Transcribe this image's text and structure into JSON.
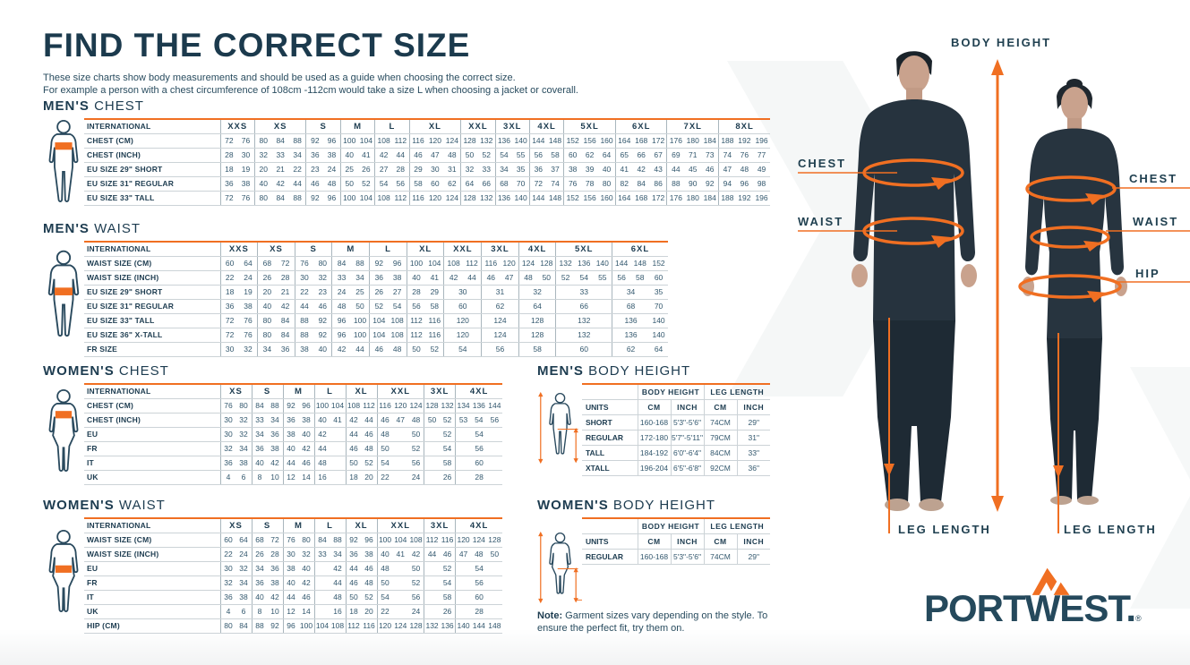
{
  "header": {
    "title": "FIND THE CORRECT SIZE",
    "subtitle1": "These size charts show body measurements and should be used as a guide when choosing the correct size.",
    "subtitle2": "For example a person with a chest circumference of 108cm -112cm would take a size L when choosing a jacket or coverall."
  },
  "colors": {
    "navy": "#1d3c50",
    "orange": "#f06f22"
  },
  "size_tables": {
    "mens_chest": {
      "title_bold": "MEN'S",
      "title_rest": "CHEST",
      "corner_label": "INTERNATIONAL",
      "groups": [
        {
          "label": "XXS",
          "span": 2
        },
        {
          "label": "XS",
          "span": 3
        },
        {
          "label": "S",
          "span": 2
        },
        {
          "label": "M",
          "span": 2
        },
        {
          "label": "L",
          "span": 2
        },
        {
          "label": "XL",
          "span": 3
        },
        {
          "label": "XXL",
          "span": 2
        },
        {
          "label": "3XL",
          "span": 2
        },
        {
          "label": "4XL",
          "span": 2
        },
        {
          "label": "5XL",
          "span": 3
        },
        {
          "label": "6XL",
          "span": 3
        },
        {
          "label": "7XL",
          "span": 3
        },
        {
          "label": "8XL",
          "span": 3
        }
      ],
      "rows": [
        {
          "label": "CHEST (CM)",
          "cells": [
            72,
            76,
            80,
            84,
            88,
            92,
            96,
            100,
            104,
            108,
            112,
            116,
            120,
            124,
            128,
            132,
            136,
            140,
            144,
            148,
            152,
            156,
            160,
            164,
            168,
            172,
            176,
            180,
            184,
            188,
            192,
            196
          ]
        },
        {
          "label": "CHEST (INCH)",
          "cells": [
            28,
            30,
            32,
            33,
            34,
            36,
            38,
            40,
            41,
            42,
            44,
            46,
            47,
            48,
            50,
            52,
            54,
            55,
            56,
            58,
            60,
            62,
            64,
            65,
            66,
            67,
            69,
            71,
            73,
            74,
            76,
            77
          ]
        },
        {
          "label": "EU SIZE 29\" SHORT",
          "cells": [
            18,
            19,
            20,
            21,
            22,
            23,
            24,
            25,
            26,
            27,
            28,
            29,
            30,
            31,
            32,
            33,
            34,
            35,
            36,
            37,
            38,
            39,
            40,
            41,
            42,
            43,
            44,
            45,
            46,
            47,
            48,
            49
          ]
        },
        {
          "label": "EU SIZE 31\" REGULAR",
          "cells": [
            36,
            38,
            40,
            42,
            44,
            46,
            48,
            50,
            52,
            54,
            56,
            58,
            60,
            62,
            64,
            66,
            68,
            70,
            72,
            74,
            76,
            78,
            80,
            82,
            84,
            86,
            88,
            90,
            92,
            94,
            96,
            98
          ]
        },
        {
          "label": "EU SIZE 33\" TALL",
          "cells": [
            72,
            76,
            80,
            84,
            88,
            92,
            96,
            100,
            104,
            108,
            112,
            116,
            120,
            124,
            128,
            132,
            136,
            140,
            144,
            148,
            152,
            156,
            160,
            164,
            168,
            172,
            176,
            180,
            184,
            188,
            192,
            196
          ]
        }
      ]
    },
    "mens_waist": {
      "title_bold": "MEN'S",
      "title_rest": "WAIST",
      "corner_label": "INTERNATIONAL",
      "groups": [
        {
          "label": "XXS",
          "span": 2
        },
        {
          "label": "XS",
          "span": 2
        },
        {
          "label": "S",
          "span": 2
        },
        {
          "label": "M",
          "span": 2
        },
        {
          "label": "L",
          "span": 2
        },
        {
          "label": "XL",
          "span": 2
        },
        {
          "label": "XXL",
          "span": 2
        },
        {
          "label": "3XL",
          "span": 2
        },
        {
          "label": "4XL",
          "span": 2
        },
        {
          "label": "5XL",
          "span": 3
        },
        {
          "label": "6XL",
          "span": 3
        }
      ],
      "rows": [
        {
          "label": "WAIST SIZE (CM)",
          "cells": [
            60,
            64,
            68,
            72,
            76,
            80,
            84,
            88,
            92,
            96,
            100,
            104,
            108,
            112,
            116,
            120,
            124,
            128,
            132,
            136,
            140,
            144,
            148,
            152
          ]
        },
        {
          "label": "WAIST SIZE (INCH)",
          "cells": [
            22,
            24,
            26,
            28,
            30,
            32,
            33,
            34,
            36,
            38,
            40,
            41,
            42,
            44,
            46,
            47,
            48,
            50,
            52,
            54,
            55,
            56,
            58,
            60
          ]
        },
        {
          "label": "EU SIZE 29\" SHORT",
          "cells": [
            18,
            19,
            20,
            21,
            22,
            23,
            24,
            25,
            26,
            27,
            28,
            29,
            {
              "v": 30,
              "s": 2
            },
            {
              "v": 31,
              "s": 2
            },
            {
              "v": 32,
              "s": 2
            },
            {
              "v": 33,
              "s": 3
            },
            {
              "v": 34,
              "s": 2
            },
            35
          ]
        },
        {
          "label": "EU SIZE 31\" REGULAR",
          "cells": [
            36,
            38,
            40,
            42,
            44,
            46,
            48,
            50,
            52,
            54,
            56,
            58,
            {
              "v": 60,
              "s": 2
            },
            {
              "v": 62,
              "s": 2
            },
            {
              "v": 64,
              "s": 2
            },
            {
              "v": 66,
              "s": 3
            },
            {
              "v": 68,
              "s": 2
            },
            70
          ]
        },
        {
          "label": "EU SIZE 33\" TALL",
          "cells": [
            72,
            76,
            80,
            84,
            88,
            92,
            96,
            100,
            104,
            108,
            112,
            116,
            {
              "v": 120,
              "s": 2
            },
            {
              "v": 124,
              "s": 2
            },
            {
              "v": 128,
              "s": 2
            },
            {
              "v": 132,
              "s": 3
            },
            {
              "v": 136,
              "s": 2
            },
            140
          ]
        },
        {
          "label": "EU SIZE 36\" X-TALL",
          "cells": [
            72,
            76,
            80,
            84,
            88,
            92,
            96,
            100,
            104,
            108,
            112,
            116,
            {
              "v": 120,
              "s": 2
            },
            {
              "v": 124,
              "s": 2
            },
            {
              "v": 128,
              "s": 2
            },
            {
              "v": 132,
              "s": 3
            },
            {
              "v": 136,
              "s": 2
            },
            140
          ]
        },
        {
          "label": "FR SIZE",
          "cells": [
            30,
            32,
            34,
            36,
            38,
            40,
            42,
            44,
            46,
            48,
            50,
            52,
            {
              "v": 54,
              "s": 2
            },
            {
              "v": 56,
              "s": 2
            },
            {
              "v": 58,
              "s": 2
            },
            {
              "v": 60,
              "s": 3
            },
            {
              "v": 62,
              "s": 2
            },
            64
          ]
        }
      ]
    },
    "womens_chest": {
      "title_bold": "WOMEN'S",
      "title_rest": "CHEST",
      "corner_label": "INTERNATIONAL",
      "groups": [
        {
          "label": "XS",
          "span": 2
        },
        {
          "label": "S",
          "span": 2
        },
        {
          "label": "M",
          "span": 2
        },
        {
          "label": "L",
          "span": 2
        },
        {
          "label": "XL",
          "span": 2
        },
        {
          "label": "XXL",
          "span": 3
        },
        {
          "label": "3XL",
          "span": 2
        },
        {
          "label": "4XL",
          "span": 3
        }
      ],
      "rows": [
        {
          "label": "CHEST (CM)",
          "cells": [
            76,
            80,
            84,
            88,
            92,
            96,
            100,
            104,
            108,
            112,
            116,
            120,
            124,
            128,
            132,
            134,
            136,
            144
          ]
        },
        {
          "label": "CHEST (INCH)",
          "cells": [
            30,
            32,
            33,
            34,
            36,
            38,
            40,
            41,
            42,
            44,
            46,
            47,
            48,
            50,
            52,
            53,
            54,
            56
          ]
        },
        {
          "label": "EU",
          "cells": [
            30,
            32,
            34,
            36,
            38,
            40,
            42,
            "",
            44,
            46,
            48,
            "",
            50,
            "",
            52,
            {
              "v": 54,
              "s": 3
            }
          ]
        },
        {
          "label": "FR",
          "cells": [
            32,
            34,
            36,
            38,
            40,
            42,
            44,
            "",
            46,
            48,
            50,
            "",
            52,
            "",
            54,
            {
              "v": 56,
              "s": 3
            }
          ]
        },
        {
          "label": "IT",
          "cells": [
            36,
            38,
            40,
            42,
            44,
            46,
            48,
            "",
            50,
            52,
            54,
            "",
            56,
            "",
            58,
            {
              "v": 60,
              "s": 3
            }
          ]
        },
        {
          "label": "UK",
          "cells": [
            4,
            6,
            8,
            10,
            12,
            14,
            16,
            "",
            18,
            20,
            22,
            "",
            24,
            "",
            26,
            {
              "v": 28,
              "s": 3
            }
          ]
        }
      ]
    },
    "womens_waist": {
      "title_bold": "WOMEN'S",
      "title_rest": "WAIST",
      "corner_label": "INTERNATIONAL",
      "groups": [
        {
          "label": "XS",
          "span": 2
        },
        {
          "label": "S",
          "span": 2
        },
        {
          "label": "M",
          "span": 2
        },
        {
          "label": "L",
          "span": 2
        },
        {
          "label": "XL",
          "span": 2
        },
        {
          "label": "XXL",
          "span": 3
        },
        {
          "label": "3XL",
          "span": 2
        },
        {
          "label": "4XL",
          "span": 3
        }
      ],
      "rows": [
        {
          "label": "WAIST SIZE (CM)",
          "cells": [
            60,
            64,
            68,
            72,
            76,
            80,
            84,
            88,
            92,
            96,
            100,
            104,
            108,
            112,
            116,
            120,
            124,
            128
          ]
        },
        {
          "label": "WAIST SIZE (INCH)",
          "cells": [
            22,
            24,
            26,
            28,
            30,
            32,
            33,
            34,
            36,
            38,
            40,
            41,
            42,
            44,
            46,
            47,
            48,
            50
          ]
        },
        {
          "label": "EU",
          "cells": [
            30,
            32,
            34,
            36,
            38,
            40,
            "",
            42,
            44,
            46,
            48,
            "",
            50,
            "",
            52,
            {
              "v": 54,
              "s": 3
            }
          ]
        },
        {
          "label": "FR",
          "cells": [
            32,
            34,
            36,
            38,
            40,
            42,
            "",
            44,
            46,
            48,
            50,
            "",
            52,
            "",
            54,
            {
              "v": 56,
              "s": 3
            }
          ]
        },
        {
          "label": "IT",
          "cells": [
            36,
            38,
            40,
            42,
            44,
            46,
            "",
            48,
            50,
            52,
            54,
            "",
            56,
            "",
            58,
            {
              "v": 60,
              "s": 3
            }
          ]
        },
        {
          "label": "UK",
          "cells": [
            4,
            6,
            8,
            10,
            12,
            14,
            "",
            16,
            18,
            20,
            22,
            "",
            24,
            "",
            26,
            {
              "v": 28,
              "s": 3
            }
          ]
        },
        {
          "label": "HIP (CM)",
          "cells": [
            80,
            84,
            88,
            92,
            96,
            100,
            104,
            108,
            112,
            116,
            120,
            124,
            128,
            132,
            136,
            140,
            144,
            148
          ]
        }
      ]
    }
  },
  "height_tables": {
    "mens": {
      "title_bold": "MEN'S",
      "title_rest": "BODY HEIGHT",
      "group_headers": [
        "BODY HEIGHT",
        "LEG LENGTH"
      ],
      "units_label": "UNITS",
      "units": [
        "CM",
        "INCH",
        "CM",
        "INCH"
      ],
      "rows": [
        {
          "label": "SHORT",
          "cells": [
            "160-168",
            "5'3\"-5'6\"",
            "74CM",
            "29\""
          ]
        },
        {
          "label": "REGULAR",
          "cells": [
            "172-180",
            "5'7\"-5'11\"",
            "79CM",
            "31\""
          ]
        },
        {
          "label": "TALL",
          "cells": [
            "184-192",
            "6'0\"-6'4\"",
            "84CM",
            "33\""
          ]
        },
        {
          "label": "XTALL",
          "cells": [
            "196-204",
            "6'5\"-6'8\"",
            "92CM",
            "36\""
          ]
        }
      ]
    },
    "womens": {
      "title_bold": "WOMEN'S",
      "title_rest": "BODY HEIGHT",
      "group_headers": [
        "BODY HEIGHT",
        "LEG LENGTH"
      ],
      "units_label": "UNITS",
      "units": [
        "CM",
        "INCH",
        "CM",
        "INCH"
      ],
      "rows": [
        {
          "label": "REGULAR",
          "cells": [
            "160-168",
            "5'3\"-5'6\"",
            "74CM",
            "29\""
          ]
        }
      ]
    }
  },
  "note": {
    "label": "Note:",
    "text": " Garment sizes vary depending on the style. To ensure the perfect fit, try them on."
  },
  "figure_panel": {
    "body_height": "BODY HEIGHT",
    "chest_left": "CHEST",
    "waist_left": "WAIST",
    "chest_right": "CHEST",
    "waist_right": "WAIST",
    "hip_right": "HIP",
    "leg_length_left": "LEG LENGTH",
    "leg_length_right": "LEG LENGTH"
  },
  "logo": {
    "text": "PORTWEST.",
    "reg": "®"
  }
}
